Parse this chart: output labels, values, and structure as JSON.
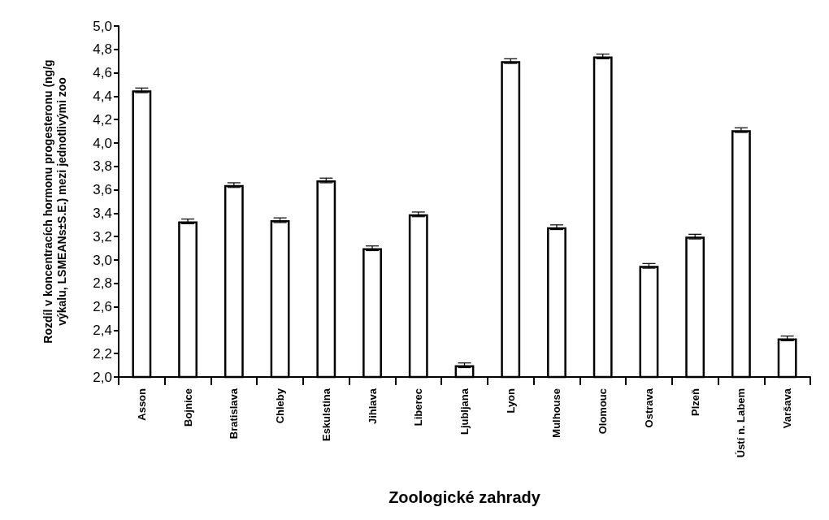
{
  "chart_data": {
    "type": "bar",
    "xlabel": "Zoologické zahrady",
    "ylabel": "Rozdíl v koncentracích hormonu progesteronu (ng/g\nvýkalu, LSMEANs±S.E.) mezi jednotlivými zoo",
    "categories": [
      "Asson",
      "Bojnice",
      "Bratislava",
      "Chleby",
      "Eskulstina",
      "Jihlava",
      "Liberec",
      "Ljubljana",
      "Lyon",
      "Mulhouse",
      "Olomouc",
      "Ostrava",
      "Plzeň",
      "Ústí n. Labem",
      "Varšava"
    ],
    "values": [
      4.45,
      3.33,
      3.64,
      3.34,
      3.68,
      3.1,
      3.39,
      2.1,
      4.7,
      3.28,
      4.74,
      2.95,
      3.2,
      4.11,
      2.33
    ],
    "errors": [
      0.02,
      0.02,
      0.02,
      0.02,
      0.02,
      0.02,
      0.02,
      0.02,
      0.02,
      0.02,
      0.02,
      0.02,
      0.02,
      0.02,
      0.02
    ],
    "color": "#ffffff",
    "ylim": [
      2.0,
      5.0
    ],
    "yticks": [
      {
        "value": 2.0,
        "label": "2,0"
      },
      {
        "value": 2.2,
        "label": "2,2"
      },
      {
        "value": 2.4,
        "label": "2,4"
      },
      {
        "value": 2.6,
        "label": "2,6"
      },
      {
        "value": 2.8,
        "label": "2,8"
      },
      {
        "value": 3.0,
        "label": "3,0"
      },
      {
        "value": 3.2,
        "label": "3,2"
      },
      {
        "value": 3.4,
        "label": "3,4"
      },
      {
        "value": 3.6,
        "label": "3,6"
      },
      {
        "value": 3.8,
        "label": "3,8"
      },
      {
        "value": 4.0,
        "label": "4,0"
      },
      {
        "value": 4.2,
        "label": "4,2"
      },
      {
        "value": 4.4,
        "label": "4,4"
      },
      {
        "value": 4.6,
        "label": "4,6"
      },
      {
        "value": 4.8,
        "label": "4,8"
      },
      {
        "value": 5.0,
        "label": "5,0"
      }
    ],
    "grid": false
  }
}
